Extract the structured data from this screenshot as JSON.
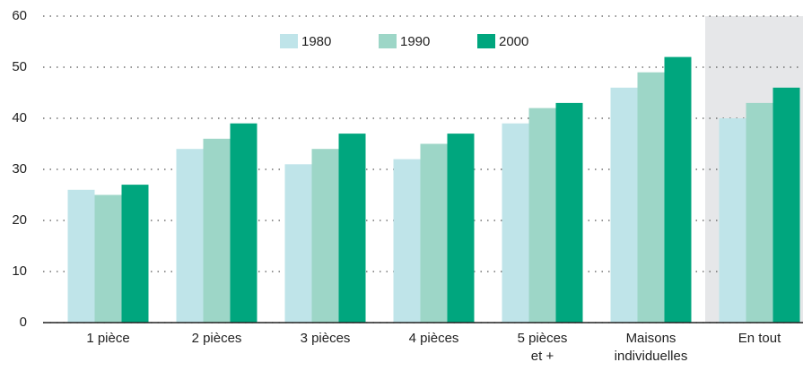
{
  "chart_data": {
    "type": "bar",
    "categories": [
      "1 pièce",
      "2 pièces",
      "3 pièces",
      "4 pièces",
      "5 pièces\net +",
      "Maisons\nindividuelles",
      "En tout"
    ],
    "series": [
      {
        "name": "1980",
        "color": "#bfe4e9",
        "values": [
          26,
          34,
          31,
          32,
          39,
          46,
          40
        ]
      },
      {
        "name": "1990",
        "color": "#9dd6c7",
        "values": [
          25,
          36,
          34,
          35,
          42,
          49,
          43
        ]
      },
      {
        "name": "2000",
        "color": "#00a67e",
        "values": [
          27,
          39,
          37,
          37,
          43,
          52,
          46
        ]
      }
    ],
    "ylim": [
      0,
      60
    ],
    "yticks": [
      0,
      10,
      20,
      30,
      40,
      50,
      60
    ],
    "grid": true,
    "highlight_index": 6,
    "highlight_color": "#e6e7e9",
    "legend": "top"
  }
}
